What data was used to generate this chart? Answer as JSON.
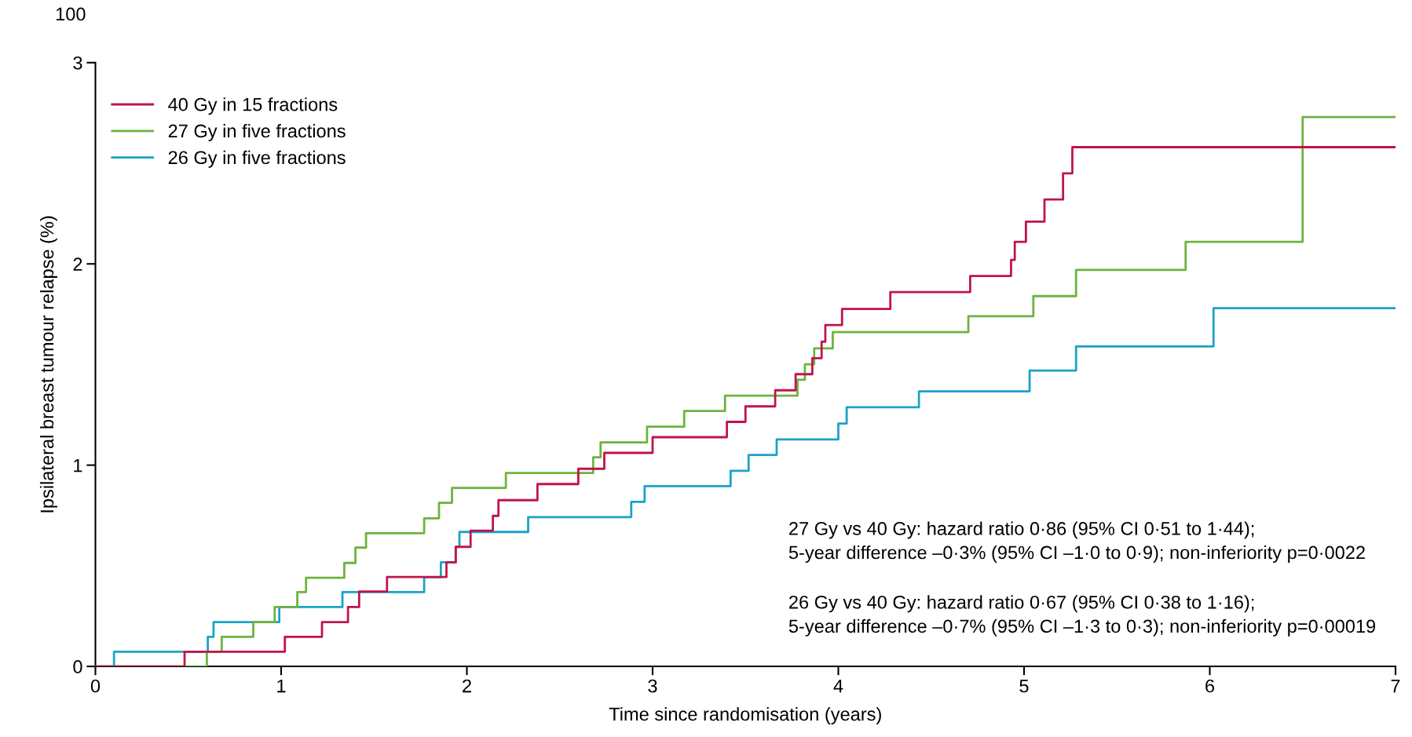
{
  "chart_data": [
    {
      "type": "step",
      "xlabel": "Time since randomisation (years)",
      "ylabel": "Ipsilateral breast tumour relapse (%)",
      "xlim": [
        0,
        7
      ],
      "xticks": [
        0,
        1,
        2,
        3,
        4,
        5,
        6,
        7
      ],
      "ylim": [
        0,
        3
      ],
      "yticks": [
        0,
        1,
        2,
        3
      ],
      "grid": false,
      "legend": "top left",
      "series": [
        {
          "name": "40 Gy in 15 fractions",
          "color": "#c0144c",
          "x": [
            0,
            0.48,
            1.02,
            1.22,
            1.36,
            1.42,
            1.57,
            1.89,
            1.94,
            2.02,
            2.14,
            2.17,
            2.38,
            2.6,
            2.74,
            3.0,
            3.4,
            3.5,
            3.66,
            3.77,
            3.86,
            3.91,
            3.93,
            4.02,
            4.28,
            4.71,
            4.93,
            4.95,
            5.01,
            5.11,
            5.21,
            5.26,
            7
          ],
          "values": [
            0,
            0.073,
            0.147,
            0.22,
            0.295,
            0.372,
            0.444,
            0.517,
            0.594,
            0.674,
            0.748,
            0.826,
            0.906,
            0.982,
            1.061,
            1.139,
            1.215,
            1.292,
            1.372,
            1.452,
            1.531,
            1.613,
            1.696,
            1.776,
            1.86,
            1.94,
            2.02,
            2.11,
            2.21,
            2.32,
            2.45,
            2.58,
            2.58
          ]
        },
        {
          "name": "27 Gy in five fractions",
          "color": "#6db33f",
          "x": [
            0,
            0.6,
            0.68,
            0.85,
            0.965,
            1.087,
            1.134,
            1.34,
            1.4,
            1.457,
            1.77,
            1.85,
            1.92,
            2.21,
            2.68,
            2.72,
            2.97,
            3.17,
            3.39,
            3.78,
            3.82,
            3.87,
            3.97,
            4.7,
            5.05,
            5.28,
            5.87,
            6.5,
            7
          ],
          "values": [
            0,
            0.073,
            0.147,
            0.22,
            0.295,
            0.369,
            0.44,
            0.514,
            0.59,
            0.662,
            0.736,
            0.813,
            0.887,
            0.961,
            1.039,
            1.113,
            1.191,
            1.269,
            1.345,
            1.424,
            1.501,
            1.58,
            1.661,
            1.74,
            1.84,
            1.97,
            2.11,
            2.73,
            2.73
          ]
        },
        {
          "name": "26 Gy in five fractions",
          "color": "#1aa3c8",
          "x": [
            0,
            0.1,
            0.605,
            0.636,
            0.99,
            1.33,
            1.77,
            1.86,
            1.94,
            1.96,
            2.33,
            2.885,
            2.957,
            3.42,
            3.517,
            3.668,
            4.0,
            4.045,
            4.434,
            5.03,
            5.28,
            6.02,
            7
          ],
          "values": [
            0,
            0.073,
            0.147,
            0.22,
            0.295,
            0.369,
            0.443,
            0.517,
            0.594,
            0.668,
            0.742,
            0.818,
            0.896,
            0.972,
            1.051,
            1.128,
            1.207,
            1.288,
            1.367,
            1.47,
            1.59,
            1.78,
            1.78
          ]
        }
      ],
      "annotations": [
        "100",
        "27 Gy vs 40 Gy: hazard ratio 0·86 (95% CI 0·51 to 1·44);\n5-year difference –0·3% (95% CI –1·0 to 0·9); non-inferiority p=0·0022",
        "26 Gy vs 40 Gy: hazard ratio 0·67 (95% CI 0·38 to 1·16);\n5-year difference –0·7% (95% CI –1·3 to 0·3); non-inferiority p=0·00019"
      ]
    }
  ]
}
